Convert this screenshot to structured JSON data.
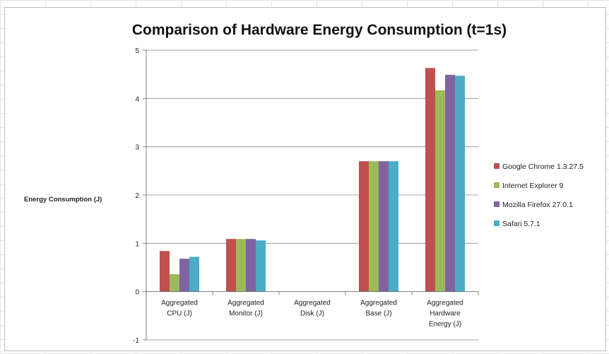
{
  "chart_data": {
    "type": "bar",
    "title": "Comparison of Hardware Energy Consumption (t=1s)",
    "ylabel": "Energy Consumption  (J)",
    "xlabel": "",
    "ylim": [
      -1,
      5
    ],
    "y_ticks": [
      -1,
      0,
      1,
      2,
      3,
      4,
      5
    ],
    "grid": true,
    "legend_position": "right",
    "categories": [
      [
        "Aggregated",
        "CPU (J)"
      ],
      [
        "Aggregated",
        "Monitor (J)"
      ],
      [
        "Aggregated",
        "Disk (J)"
      ],
      [
        "Aggregated",
        "Base (J)"
      ],
      [
        "Aggregated",
        "Hardware",
        "Energy (J)"
      ]
    ],
    "series": [
      {
        "name": "Google Chrome  1.3.27.5",
        "color": "#c0504d",
        "values": [
          0.84,
          1.09,
          0,
          2.7,
          4.63
        ]
      },
      {
        "name": "Internet Explorer  9",
        "color": "#9bbb59",
        "values": [
          0.36,
          1.09,
          0,
          2.7,
          4.17
        ]
      },
      {
        "name": "Mozilla Firefox 27.0.1",
        "color": "#8064a2",
        "values": [
          0.68,
          1.09,
          0,
          2.7,
          4.49
        ]
      },
      {
        "name": "Safari 5.7.1",
        "color": "#4bacc6",
        "values": [
          0.72,
          1.06,
          0,
          2.7,
          4.47
        ]
      }
    ]
  }
}
